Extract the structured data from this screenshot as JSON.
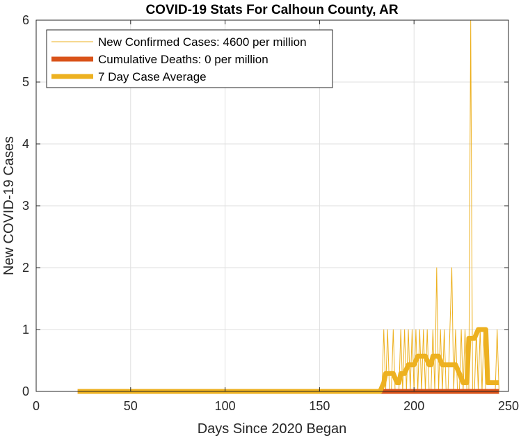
{
  "chart_data": {
    "type": "line",
    "title": "COVID-19 Stats For Calhoun County, AR",
    "xlabel": "Days Since 2020 Began",
    "ylabel": "New COVID-19 Cases",
    "xlim": [
      0,
      250
    ],
    "ylim": [
      0,
      6
    ],
    "xticks": [
      "0",
      "50",
      "100",
      "150",
      "200",
      "250"
    ],
    "yticks": [
      "0",
      "1",
      "2",
      "3",
      "4",
      "5",
      "6"
    ],
    "grid": true,
    "legend_position": "top-left",
    "series": [
      {
        "name": "New Confirmed Cases: 4600 per million",
        "color": "#EDB120",
        "style": "thin-line",
        "x": [
          22,
          30,
          40,
          50,
          60,
          70,
          80,
          90,
          100,
          110,
          120,
          130,
          140,
          150,
          160,
          170,
          180,
          182,
          183,
          184,
          185,
          186,
          187,
          188,
          189,
          190,
          191,
          192,
          193,
          194,
          195,
          196,
          197,
          198,
          199,
          200,
          201,
          202,
          203,
          204,
          205,
          206,
          207,
          208,
          209,
          210,
          211,
          212,
          213,
          214,
          215,
          216,
          217,
          218,
          219,
          220,
          221,
          222,
          223,
          224,
          225,
          226,
          227,
          228,
          229,
          230,
          231,
          232,
          233,
          234,
          235,
          236,
          237,
          238,
          239,
          240,
          241,
          242,
          243,
          244,
          245
        ],
        "y": [
          0,
          0,
          0,
          0,
          0,
          0,
          0,
          0,
          0,
          0,
          0,
          0,
          0,
          0,
          0,
          0,
          0,
          0,
          0,
          1,
          0,
          1,
          0,
          0,
          1,
          0,
          0,
          0,
          1,
          0,
          1,
          0,
          1,
          0,
          1,
          0,
          1,
          0,
          1,
          0,
          1,
          0,
          1,
          0,
          0,
          1,
          0,
          2,
          0,
          1,
          0,
          1,
          0,
          0,
          1,
          2,
          0,
          1,
          0,
          0,
          1,
          0,
          1,
          0,
          0,
          6,
          0,
          0,
          1,
          0,
          1,
          0,
          1,
          0,
          0,
          0,
          0,
          0,
          0,
          1,
          0
        ]
      },
      {
        "name": "Cumulative Deaths: 0 per million",
        "color": "#D95319",
        "style": "thick-line",
        "x": [
          22,
          245
        ],
        "y": [
          0,
          0
        ]
      },
      {
        "name": "7 Day Case Average",
        "color": "#EDB120",
        "style": "thick-line",
        "x": [
          22,
          182,
          184,
          185,
          187,
          189,
          191,
          192,
          193,
          195,
          197,
          199,
          200,
          202,
          204,
          206,
          208,
          209,
          210,
          211,
          213,
          215,
          216,
          218,
          220,
          222,
          224,
          226,
          228,
          229,
          230,
          232,
          234,
          236,
          238,
          239,
          240,
          241,
          243,
          245
        ],
        "y": [
          0,
          0,
          0.14,
          0.29,
          0.29,
          0.29,
          0.14,
          0.14,
          0.29,
          0.29,
          0.43,
          0.43,
          0.43,
          0.57,
          0.57,
          0.57,
          0.43,
          0.43,
          0.57,
          0.57,
          0.57,
          0.43,
          0.43,
          0.43,
          0.43,
          0.43,
          0.29,
          0.14,
          0.14,
          0.86,
          0.86,
          0.86,
          1.0,
          1.0,
          1.0,
          0.14,
          0.14,
          0.14,
          0.14,
          0.14
        ]
      }
    ]
  }
}
